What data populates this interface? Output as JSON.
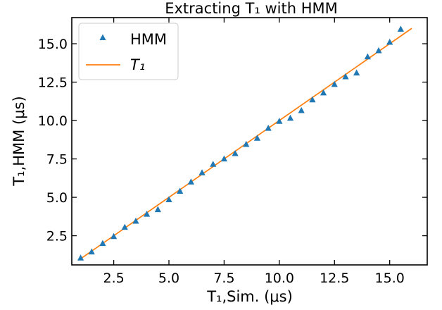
{
  "chart_data": {
    "type": "scatter",
    "title": "Extracting T₁ with HMM",
    "xlabel": "T₁,Sim. (μs)",
    "ylabel": "T₁,HMM (μs)",
    "xlim": [
      0.6,
      16.7
    ],
    "ylim": [
      0.6,
      16.7
    ],
    "xticks": [
      "2.5",
      "5.0",
      "7.5",
      "10.0",
      "12.5",
      "15.0"
    ],
    "yticks": [
      "2.5",
      "5.0",
      "7.5",
      "10.0",
      "12.5",
      "15.0"
    ],
    "grid": false,
    "legend_position": "top-left",
    "series": [
      {
        "name": "HMM",
        "kind": "scatter",
        "marker": "triangle",
        "color": "#1f77b4",
        "x": [
          1.0,
          1.5,
          2.0,
          2.5,
          3.0,
          3.5,
          4.0,
          4.5,
          5.0,
          5.5,
          6.0,
          6.5,
          7.0,
          7.5,
          8.0,
          8.5,
          9.0,
          9.5,
          10.0,
          10.5,
          11.0,
          11.5,
          12.0,
          12.5,
          13.0,
          13.5,
          14.0,
          14.5,
          15.0,
          15.5
        ],
        "y": [
          1.05,
          1.45,
          2.0,
          2.45,
          3.05,
          3.45,
          3.9,
          4.2,
          4.85,
          5.4,
          6.0,
          6.6,
          7.15,
          7.5,
          7.85,
          8.45,
          8.85,
          9.5,
          9.95,
          10.15,
          10.65,
          11.35,
          11.8,
          12.35,
          12.85,
          13.1,
          14.15,
          14.55,
          15.1,
          15.95
        ]
      },
      {
        "name": "T₁",
        "kind": "line",
        "color": "#ff7f0e",
        "x": [
          1.0,
          16.0
        ],
        "y": [
          1.0,
          16.0
        ]
      }
    ]
  }
}
